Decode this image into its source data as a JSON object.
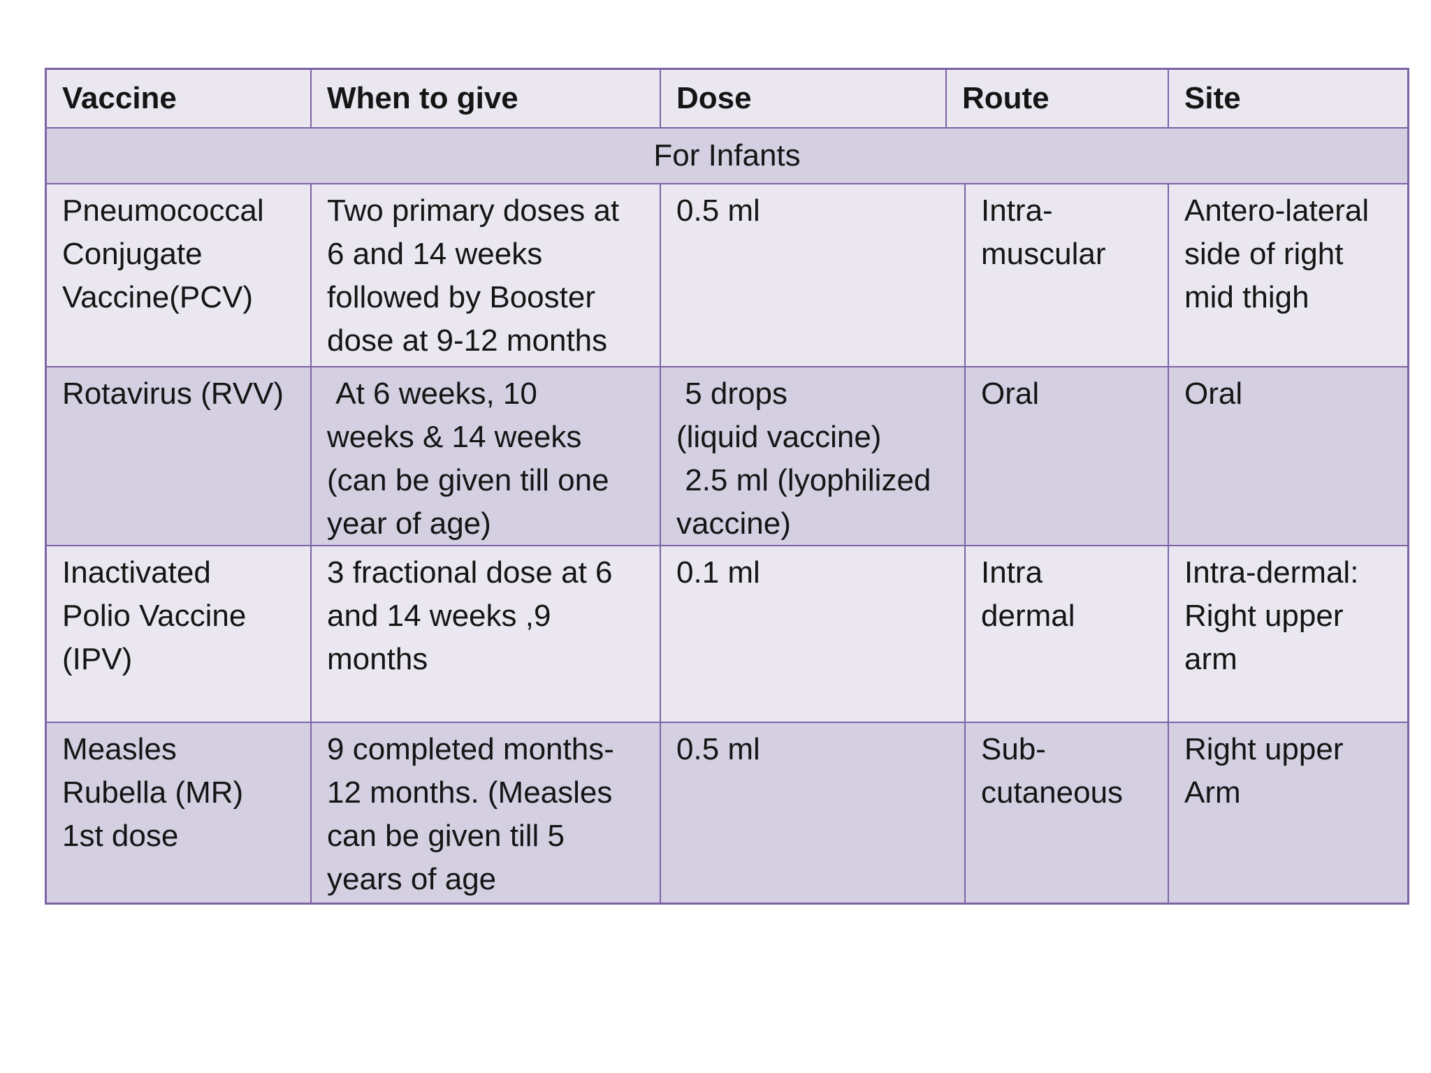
{
  "table": {
    "section_header": "For Infants",
    "columns": [
      "Vaccine",
      "When to give",
      "Dose",
      "Route",
      "Site"
    ],
    "rows": [
      {
        "vaccine": "Pneumococcal\nConjugate\nVaccine(PCV)",
        "when": "Two primary doses at\n6 and 14 weeks\nfollowed by Booster\ndose at 9-12 months",
        "dose": "0.5 ml",
        "route": "Intra-\nmuscular",
        "site": "Antero-lateral\nside of right\nmid thigh"
      },
      {
        "vaccine": "Rotavirus (RVV)",
        "when": " At 6 weeks, 10\nweeks & 14 weeks\n(can be given till one\nyear of age)",
        "dose": " 5 drops\n(liquid vaccine)\n 2.5 ml (lyophilized\nvaccine)",
        "route": "Oral",
        "site": "Oral"
      },
      {
        "vaccine": "Inactivated\nPolio Vaccine\n(IPV)",
        "when": "3 fractional dose at 6\nand 14 weeks ,9\nmonths",
        "dose": "0.1 ml",
        "route": "Intra\ndermal",
        "site": "Intra-dermal:\nRight upper\narm"
      },
      {
        "vaccine": "Measles\nRubella (MR)\n1st dose",
        "when": "9 completed months-\n12 months. (Measles\ncan be given till 5\nyears of age",
        "dose": "0.5 ml",
        "route": "Sub-\ncutaneous",
        "site": "Right upper\nArm"
      }
    ],
    "colors": {
      "border": "#7c63a6",
      "band_light": "#eae7f0",
      "band_dark": "#d5cfe2",
      "text": "#151515",
      "page_background": "#ffffff"
    }
  }
}
